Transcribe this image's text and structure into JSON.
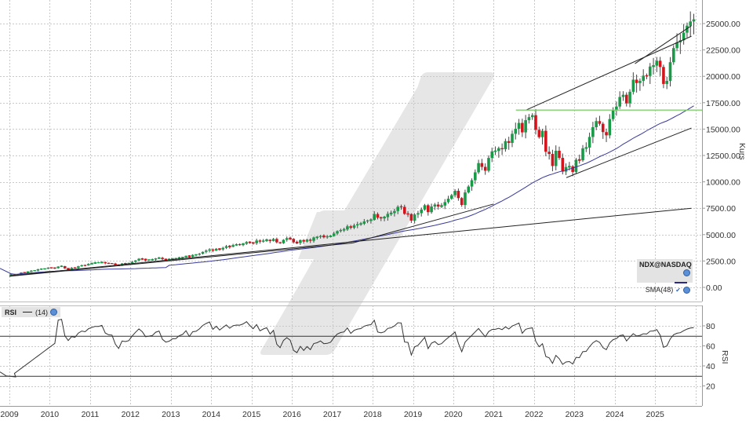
{
  "main_panel": {
    "legend": {
      "symbol": "NDX@NASDAQ",
      "indicator_label": "SMA(48)",
      "indicator_color": "#2a2a8a"
    },
    "y_axis_title": "Kurs",
    "y_ticks": [
      "25000.00",
      "22500.00",
      "20000.00",
      "17500.00",
      "15000.00",
      "12500.00",
      "10000.00",
      "7500.00",
      "5000.00",
      "2500.00",
      "0.00"
    ]
  },
  "rsi_panel": {
    "legend": {
      "label": "RSI",
      "param": "(14)"
    },
    "y_axis_title": "RSI",
    "y_ticks": [
      "80",
      "60",
      "40",
      "20"
    ]
  },
  "x_axis": {
    "years": [
      "2009",
      "2010",
      "2011",
      "2012",
      "2013",
      "2014",
      "2015",
      "2016",
      "2017",
      "2018",
      "2019",
      "2020",
      "2021",
      "2022",
      "2023",
      "2024",
      "2025"
    ]
  },
  "colors": {
    "up": "#1a9a48",
    "down": "#d4141c",
    "sma": "#3a3a9a",
    "support_line": "#7fcf6f",
    "trend_line": "#333333",
    "grid": "#c8c8c8",
    "watermark": "#e6e6e6"
  },
  "chart_data": {
    "type": "candlestick",
    "title": "NDX@NASDAQ",
    "xlabel": "",
    "ylabel": "Kurs",
    "ylim": [
      -500,
      27000
    ],
    "x_range": [
      "2009-01",
      "2025-10"
    ],
    "interval": "monthly",
    "monthly_close": [
      1237,
      1142,
      1237,
      1408,
      1398,
      1477,
      1581,
      1590,
      1724,
      1742,
      1768,
      1860,
      1839,
      1821,
      1969,
      2011,
      1796,
      1719,
      1854,
      1843,
      2001,
      2091,
      2081,
      2217,
      2282,
      2337,
      2337,
      2389,
      2289,
      2264,
      2260,
      2132,
      2064,
      2260,
      2251,
      2278,
      2419,
      2557,
      2711,
      2669,
      2592,
      2612,
      2633,
      2752,
      2799,
      2677,
      2634,
      2660,
      2726,
      2730,
      2818,
      2857,
      2986,
      2910,
      3077,
      3097,
      3193,
      3369,
      3487,
      3592,
      3484,
      3657,
      3596,
      3741,
      3904,
      3849,
      4007,
      4052,
      4050,
      4131,
      4295,
      4236,
      4187,
      4442,
      4333,
      4437,
      4509,
      4396,
      4588,
      4274,
      4182,
      4506,
      4664,
      4594,
      4280,
      4201,
      4483,
      4341,
      4523,
      4417,
      4730,
      4772,
      4875,
      4789,
      4805,
      4864,
      5105,
      5330,
      5436,
      5483,
      5788,
      5647,
      5880,
      5988,
      6031,
      6248,
      6348,
      6396,
      6949,
      6605,
      6581,
      6654,
      6967,
      7041,
      7233,
      7632,
      7628,
      6967,
      6949,
      6329,
      6907,
      7034,
      7378,
      7784,
      7128,
      7671,
      7848,
      7663,
      7750,
      8084,
      8406,
      8733,
      9151,
      8462,
      7813,
      9000,
      9555,
      10156,
      10905,
      11775,
      11418,
      11056,
      12268,
      12888,
      12925,
      13192,
      13091,
      13860,
      13687,
      14554,
      15027,
      15583,
      14690,
      15850,
      16135,
      16320,
      14930,
      14237,
      14839,
      12854,
      12643,
      11503,
      12947,
      12272,
      10971,
      11406,
      11468,
      10940,
      12101,
      12042,
      13181,
      13245,
      14254,
      15179,
      15758,
      15501,
      14715,
      14409,
      15947,
      16825,
      17137,
      18043,
      18254,
      17441,
      18537,
      19683,
      19362,
      19575,
      20060,
      20033,
      20930,
      21012,
      21478,
      20885,
      19278,
      19571,
      21341,
      22679,
      23218,
      23415,
      24136,
      24800,
      25200,
      25400
    ],
    "annotations": {
      "sma_period": 48,
      "horizontal_support": 16800,
      "rsi_period": 14,
      "rsi_levels": [
        30,
        70
      ],
      "trend_channel_upper": [
        [
          2021.8,
          16800
        ],
        [
          2025.9,
          23800
        ]
      ],
      "trend_channel_lower": [
        [
          2022.8,
          10400
        ],
        [
          2025.9,
          15100
        ]
      ],
      "short_channel_upper": [
        [
          2024.5,
          21200
        ],
        [
          2025.9,
          24800
        ]
      ],
      "long_trendline": [
        [
          2009.0,
          1100
        ],
        [
          2025.9,
          7500
        ]
      ],
      "secondary_trendline": [
        [
          2009.0,
          1100
        ],
        [
          2020.0,
          6500
        ]
      ]
    }
  }
}
